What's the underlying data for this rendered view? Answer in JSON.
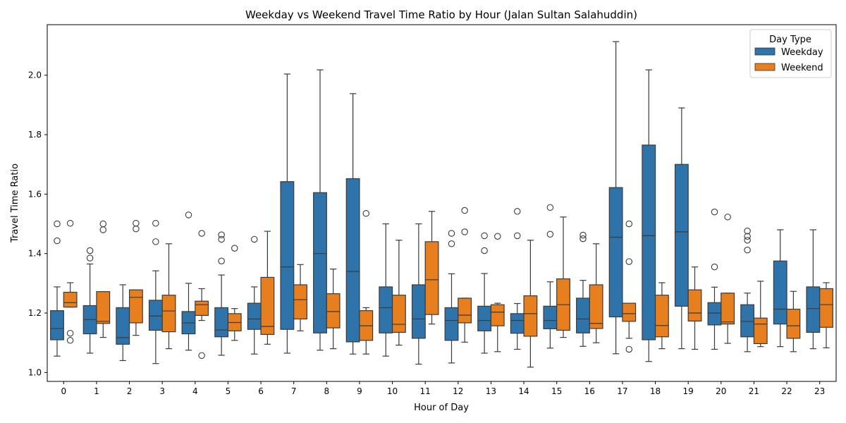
{
  "chart_data": {
    "type": "box",
    "title": "Weekday vs Weekend Travel Time Ratio by Hour (Jalan Sultan Salahuddin)",
    "xlabel": "Hour of Day",
    "ylabel": "Travel Time Ratio",
    "ylim": [
      0.97,
      2.17
    ],
    "yticks": [
      1.0,
      1.2,
      1.4,
      1.6,
      1.8,
      2.0
    ],
    "grid": false,
    "legend": {
      "title": "Day Type",
      "position": "top-right",
      "entries": [
        {
          "label": "Weekday",
          "color": "#1f77b4"
        },
        {
          "label": "Weekend",
          "color": "#ff7f0e"
        }
      ]
    },
    "categories": [
      "0",
      "1",
      "2",
      "3",
      "4",
      "5",
      "6",
      "7",
      "8",
      "9",
      "10",
      "11",
      "12",
      "13",
      "14",
      "15",
      "16",
      "17",
      "18",
      "19",
      "20",
      "21",
      "22",
      "23"
    ],
    "series": [
      {
        "name": "Weekday",
        "color": "#2e74ab",
        "boxes": [
          {
            "hour": "0",
            "whislo": 1.055,
            "q1": 1.11,
            "med": 1.148,
            "q3": 1.208,
            "whishi": 1.288,
            "fliers": [
              1.5,
              1.443
            ]
          },
          {
            "hour": "1",
            "whislo": 1.065,
            "q1": 1.13,
            "med": 1.178,
            "q3": 1.225,
            "whishi": 1.365,
            "fliers": [
              1.41,
              1.385
            ]
          },
          {
            "hour": "2",
            "whislo": 1.04,
            "q1": 1.095,
            "med": 1.117,
            "q3": 1.218,
            "whishi": 1.295,
            "fliers": []
          },
          {
            "hour": "3",
            "whislo": 1.03,
            "q1": 1.142,
            "med": 1.19,
            "q3": 1.243,
            "whishi": 1.342,
            "fliers": [
              1.502,
              1.44
            ]
          },
          {
            "hour": "4",
            "whislo": 1.075,
            "q1": 1.13,
            "med": 1.167,
            "q3": 1.205,
            "whishi": 1.3,
            "fliers": [
              1.53
            ]
          },
          {
            "hour": "5",
            "whislo": 1.058,
            "q1": 1.12,
            "med": 1.143,
            "q3": 1.218,
            "whishi": 1.328,
            "fliers": [
              1.463,
              1.448,
              1.375
            ]
          },
          {
            "hour": "6",
            "whislo": 1.062,
            "q1": 1.145,
            "med": 1.18,
            "q3": 1.233,
            "whishi": 1.288,
            "fliers": [
              1.448
            ]
          },
          {
            "hour": "7",
            "whislo": 1.065,
            "q1": 1.145,
            "med": 1.355,
            "q3": 1.642,
            "whishi": 2.004,
            "fliers": []
          },
          {
            "hour": "8",
            "whislo": 1.075,
            "q1": 1.133,
            "med": 1.4,
            "q3": 1.605,
            "whishi": 2.018,
            "fliers": []
          },
          {
            "hour": "9",
            "whislo": 1.062,
            "q1": 1.103,
            "med": 1.34,
            "q3": 1.652,
            "whishi": 1.938,
            "fliers": []
          },
          {
            "hour": "10",
            "whislo": 1.055,
            "q1": 1.133,
            "med": 1.218,
            "q3": 1.288,
            "whishi": 1.5,
            "fliers": []
          },
          {
            "hour": "11",
            "whislo": 1.028,
            "q1": 1.115,
            "med": 1.18,
            "q3": 1.295,
            "whishi": 1.5,
            "fliers": []
          },
          {
            "hour": "12",
            "whislo": 1.032,
            "q1": 1.108,
            "med": 1.175,
            "q3": 1.218,
            "whishi": 1.332,
            "fliers": [
              1.468,
              1.433
            ]
          },
          {
            "hour": "13",
            "whislo": 1.065,
            "q1": 1.14,
            "med": 1.175,
            "q3": 1.223,
            "whishi": 1.333,
            "fliers": [
              1.46,
              1.41
            ]
          },
          {
            "hour": "14",
            "whislo": 1.078,
            "q1": 1.132,
            "med": 1.175,
            "q3": 1.198,
            "whishi": 1.232,
            "fliers": [
              1.542,
              1.46
            ]
          },
          {
            "hour": "15",
            "whislo": 1.082,
            "q1": 1.147,
            "med": 1.175,
            "q3": 1.223,
            "whishi": 1.305,
            "fliers": [
              1.555,
              1.465
            ]
          },
          {
            "hour": "16",
            "whislo": 1.088,
            "q1": 1.133,
            "med": 1.18,
            "q3": 1.25,
            "whishi": 1.31,
            "fliers": [
              1.462,
              1.45
            ]
          },
          {
            "hour": "17",
            "whislo": 1.063,
            "q1": 1.187,
            "med": 1.455,
            "q3": 1.622,
            "whishi": 2.113,
            "fliers": []
          },
          {
            "hour": "18",
            "whislo": 1.037,
            "q1": 1.11,
            "med": 1.46,
            "q3": 1.765,
            "whishi": 2.018,
            "fliers": []
          },
          {
            "hour": "19",
            "whislo": 1.08,
            "q1": 1.223,
            "med": 1.473,
            "q3": 1.7,
            "whishi": 1.89,
            "fliers": []
          },
          {
            "hour": "20",
            "whislo": 1.078,
            "q1": 1.16,
            "med": 1.2,
            "q3": 1.235,
            "whishi": 1.287,
            "fliers": [
              1.54,
              1.355
            ]
          },
          {
            "hour": "21",
            "whislo": 1.07,
            "q1": 1.12,
            "med": 1.172,
            "q3": 1.228,
            "whishi": 1.267,
            "fliers": [
              1.476,
              1.458,
              1.445,
              1.412
            ]
          },
          {
            "hour": "22",
            "whislo": 1.087,
            "q1": 1.163,
            "med": 1.213,
            "q3": 1.375,
            "whishi": 1.48,
            "fliers": []
          },
          {
            "hour": "23",
            "whislo": 1.08,
            "q1": 1.135,
            "med": 1.215,
            "q3": 1.288,
            "whishi": 1.48,
            "fliers": []
          }
        ]
      },
      {
        "name": "Weekend",
        "color": "#e87f1e",
        "boxes": [
          {
            "hour": "0",
            "whislo": 1.22,
            "q1": 1.22,
            "med": 1.235,
            "q3": 1.27,
            "whishi": 1.302,
            "fliers": [
              1.502,
              1.132,
              1.108
            ]
          },
          {
            "hour": "1",
            "whislo": 1.118,
            "q1": 1.165,
            "med": 1.172,
            "q3": 1.272,
            "whishi": 1.272,
            "fliers": [
              1.5,
              1.48
            ]
          },
          {
            "hour": "2",
            "whislo": 1.125,
            "q1": 1.167,
            "med": 1.253,
            "q3": 1.278,
            "whishi": 1.278,
            "fliers": [
              1.502,
              1.483
            ]
          },
          {
            "hour": "3",
            "whislo": 1.08,
            "q1": 1.137,
            "med": 1.207,
            "q3": 1.26,
            "whishi": 1.433,
            "fliers": []
          },
          {
            "hour": "4",
            "whislo": 1.175,
            "q1": 1.192,
            "med": 1.228,
            "q3": 1.24,
            "whishi": 1.282,
            "fliers": [
              1.468,
              1.057
            ]
          },
          {
            "hour": "5",
            "whislo": 1.108,
            "q1": 1.14,
            "med": 1.168,
            "q3": 1.198,
            "whishi": 1.215,
            "fliers": [
              1.418
            ]
          },
          {
            "hour": "6",
            "whislo": 1.095,
            "q1": 1.128,
            "med": 1.155,
            "q3": 1.32,
            "whishi": 1.475,
            "fliers": []
          },
          {
            "hour": "7",
            "whislo": 1.14,
            "q1": 1.18,
            "med": 1.245,
            "q3": 1.295,
            "whishi": 1.363,
            "fliers": []
          },
          {
            "hour": "8",
            "whislo": 1.08,
            "q1": 1.15,
            "med": 1.205,
            "q3": 1.265,
            "whishi": 1.348,
            "fliers": []
          },
          {
            "hour": "9",
            "whislo": 1.062,
            "q1": 1.108,
            "med": 1.157,
            "q3": 1.208,
            "whishi": 1.218,
            "fliers": [
              1.535
            ]
          },
          {
            "hour": "10",
            "whislo": 1.092,
            "q1": 1.135,
            "med": 1.162,
            "q3": 1.26,
            "whishi": 1.445,
            "fliers": []
          },
          {
            "hour": "11",
            "whislo": 1.163,
            "q1": 1.195,
            "med": 1.312,
            "q3": 1.44,
            "whishi": 1.542,
            "fliers": []
          },
          {
            "hour": "12",
            "whislo": 1.102,
            "q1": 1.167,
            "med": 1.193,
            "q3": 1.25,
            "whishi": 1.25,
            "fliers": [
              1.545,
              1.473
            ]
          },
          {
            "hour": "13",
            "whislo": 1.07,
            "q1": 1.157,
            "med": 1.203,
            "q3": 1.228,
            "whishi": 1.233,
            "fliers": [
              1.458
            ]
          },
          {
            "hour": "14",
            "whislo": 1.018,
            "q1": 1.122,
            "med": 1.198,
            "q3": 1.258,
            "whishi": 1.445,
            "fliers": []
          },
          {
            "hour": "15",
            "whislo": 1.118,
            "q1": 1.142,
            "med": 1.228,
            "q3": 1.315,
            "whishi": 1.523,
            "fliers": []
          },
          {
            "hour": "16",
            "whislo": 1.1,
            "q1": 1.148,
            "med": 1.165,
            "q3": 1.295,
            "whishi": 1.433,
            "fliers": []
          },
          {
            "hour": "17",
            "whislo": 1.115,
            "q1": 1.172,
            "med": 1.198,
            "q3": 1.233,
            "whishi": 1.233,
            "fliers": [
              1.5,
              1.373,
              1.078
            ]
          },
          {
            "hour": "18",
            "whislo": 1.08,
            "q1": 1.12,
            "med": 1.158,
            "q3": 1.26,
            "whishi": 1.302,
            "fliers": []
          },
          {
            "hour": "19",
            "whislo": 1.078,
            "q1": 1.173,
            "med": 1.2,
            "q3": 1.278,
            "whishi": 1.355,
            "fliers": []
          },
          {
            "hour": "20",
            "whislo": 1.098,
            "q1": 1.163,
            "med": 1.17,
            "q3": 1.267,
            "whishi": 1.267,
            "fliers": [
              1.523
            ]
          },
          {
            "hour": "21",
            "whislo": 1.087,
            "q1": 1.097,
            "med": 1.163,
            "q3": 1.183,
            "whishi": 1.307,
            "fliers": []
          },
          {
            "hour": "22",
            "whislo": 1.07,
            "q1": 1.115,
            "med": 1.157,
            "q3": 1.213,
            "whishi": 1.273,
            "fliers": []
          },
          {
            "hour": "23",
            "whislo": 1.083,
            "q1": 1.152,
            "med": 1.228,
            "q3": 1.282,
            "whishi": 1.302,
            "fliers": []
          }
        ]
      }
    ]
  }
}
